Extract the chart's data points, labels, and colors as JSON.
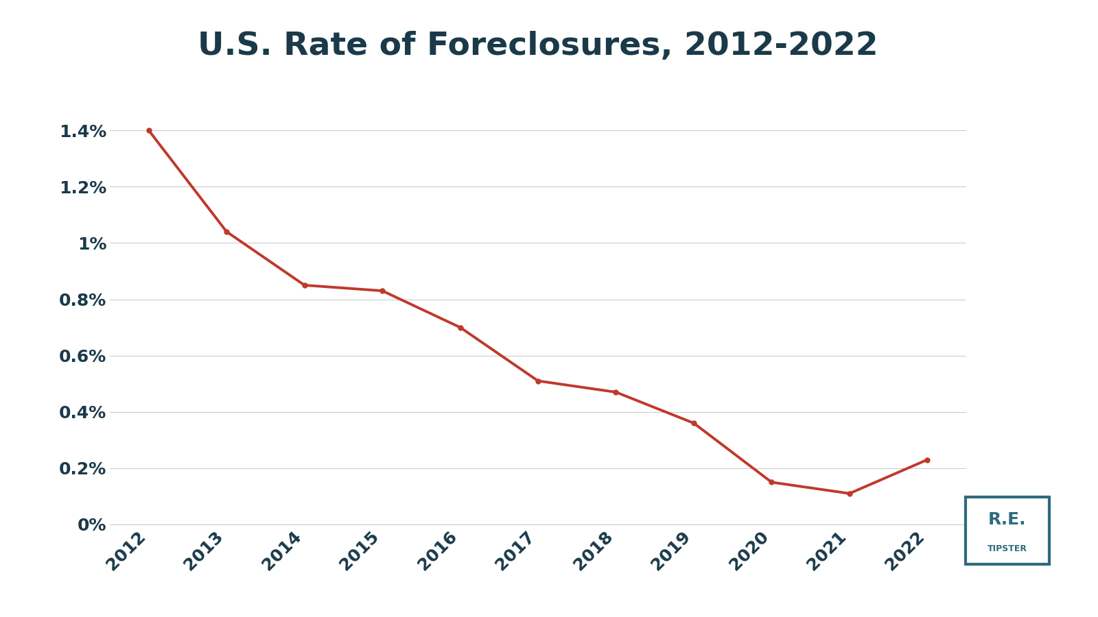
{
  "title": "U.S. Rate of Foreclosures, 2012-2022",
  "years": [
    2012,
    2013,
    2014,
    2015,
    2016,
    2017,
    2018,
    2019,
    2020,
    2021,
    2022
  ],
  "values": [
    0.014,
    0.0104,
    0.0085,
    0.0083,
    0.007,
    0.0051,
    0.0047,
    0.0036,
    0.0015,
    0.0011,
    0.0023
  ],
  "line_color": "#c0392b",
  "background_color": "#ffffff",
  "title_color": "#1a3a4a",
  "grid_color": "#cccccc",
  "tick_color": "#1a3a4a",
  "ylim": [
    0,
    0.016
  ],
  "yticks": [
    0,
    0.002,
    0.004,
    0.006,
    0.008,
    0.01,
    0.012,
    0.014
  ],
  "ytick_labels": [
    "0%",
    "0.2%",
    "0.4%",
    "0.6%",
    "0.8%",
    "1%",
    "1.2%",
    "1.4%"
  ],
  "title_fontsize": 34,
  "tick_fontsize": 18,
  "line_width": 2.8,
  "logo_box_color": "#2e6b7e",
  "logo_text_color": "#2e6b7e",
  "logo_re_text": "R.E.",
  "logo_tipster_text": "TIPSTER"
}
